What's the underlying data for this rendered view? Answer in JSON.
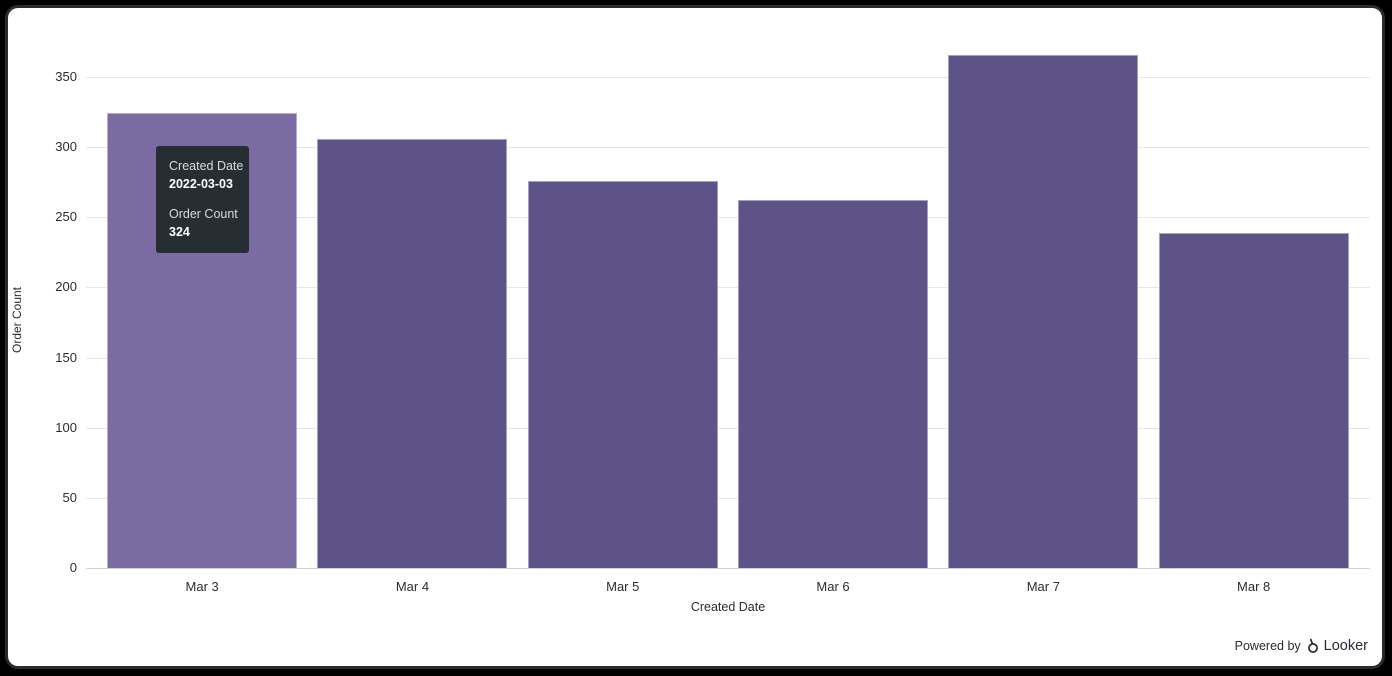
{
  "chart_data": {
    "type": "bar",
    "title": "",
    "categories": [
      "Mar 3",
      "Mar 4",
      "Mar 5",
      "Mar 6",
      "Mar 7",
      "Mar 8"
    ],
    "values": [
      324,
      306,
      276,
      262,
      366,
      239
    ],
    "xlabel": "Created Date",
    "ylabel": "Order Count",
    "ylim": [
      0,
      350
    ],
    "yticks": [
      0,
      50,
      100,
      150,
      200,
      250,
      300,
      350
    ],
    "grid": true,
    "legend": "none",
    "bar_color": "#5e5389",
    "hover_bar_color": "#7a6ba3",
    "hovered_index": 0,
    "hovered_category": "Mar 3"
  },
  "tooltip": {
    "dim_label": "Created Date",
    "dim_value": "2022-03-03",
    "measure_label": "Order Count",
    "measure_value": "324",
    "bg": "#262d33"
  },
  "branding": {
    "powered_by": "Powered by",
    "brand": "Looker"
  }
}
